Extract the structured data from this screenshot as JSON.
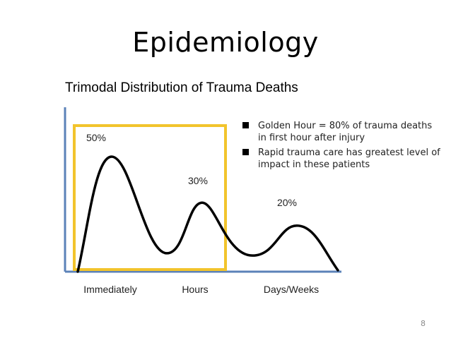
{
  "slide": {
    "title": "Epidemiology",
    "page_number": "8"
  },
  "bullets": [
    "Golden Hour = 80% of trauma deaths in first hour after injury",
    "Rapid trauma care has greatest level of impact in these patients"
  ],
  "colors": {
    "curve": "#000000",
    "axis": "#5b82b8",
    "highlight_box": "#f2c42c"
  },
  "chart_data": {
    "type": "line",
    "title": "Trimodal Distribution of Trauma Deaths",
    "xlabel": "",
    "ylabel": "",
    "categories": [
      "Immediately",
      "Hours",
      "Days/Weeks"
    ],
    "peaks": [
      {
        "category": "Immediately",
        "value": 50,
        "label": "50%"
      },
      {
        "category": "Hours",
        "value": 30,
        "label": "30%"
      },
      {
        "category": "Days/Weeks",
        "value": 20,
        "label": "20%"
      }
    ],
    "highlight": {
      "from": "Immediately",
      "to": "Hours",
      "note": "Golden Hour"
    },
    "grid": false,
    "legend": "none"
  }
}
